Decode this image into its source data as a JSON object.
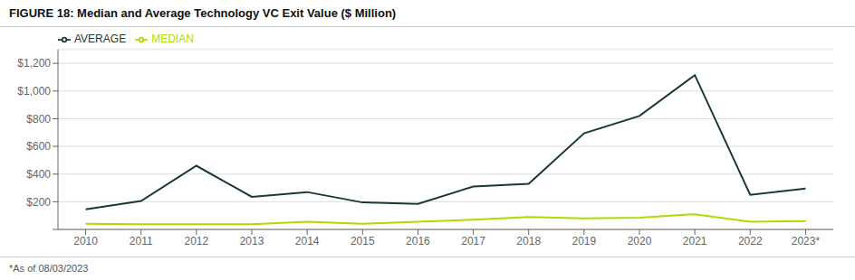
{
  "chart_data": {
    "type": "line",
    "title": "FIGURE 18: Median and Average Technology VC Exit Value ($ Million)",
    "annotations": [
      "*As of 08/03/2023"
    ],
    "x": [
      2010,
      2011,
      2012,
      2013,
      2014,
      2015,
      2016,
      2017,
      2018,
      2019,
      2020,
      2021,
      2022,
      2023
    ],
    "series": [
      {
        "name": "MEDIAN",
        "color": "#aadd00",
        "values": [
          40,
          38,
          38,
          38,
          55,
          40,
          55,
          70,
          90,
          80,
          85,
          110,
          55,
          60
        ]
      },
      {
        "name": "AVERAGE",
        "color": "#1a3a30",
        "values": [
          145,
          205,
          460,
          235,
          270,
          195,
          185,
          310,
          330,
          695,
          820,
          1115,
          250,
          295
        ]
      }
    ],
    "xlim": [
      2009.5,
      2023.5
    ],
    "xticks": [
      2010,
      2011,
      2012,
      2013,
      2014,
      2015,
      2016,
      2017,
      2018,
      2019,
      2020,
      2021,
      2022,
      {
        "value": 2023,
        "label": "2023*"
      }
    ],
    "ylim": [
      0,
      1300
    ],
    "yticks": [
      {
        "value": 0,
        "label": ""
      },
      {
        "value": 200,
        "label": "$200"
      },
      {
        "value": 400,
        "label": "$400"
      },
      {
        "value": 600,
        "label": "$600"
      },
      {
        "value": 800,
        "label": "$800"
      },
      {
        "value": 1000,
        "label": "$1,000"
      },
      {
        "value": 1200,
        "label": "$1,200"
      }
    ],
    "grid": true,
    "legend": "upper left"
  }
}
